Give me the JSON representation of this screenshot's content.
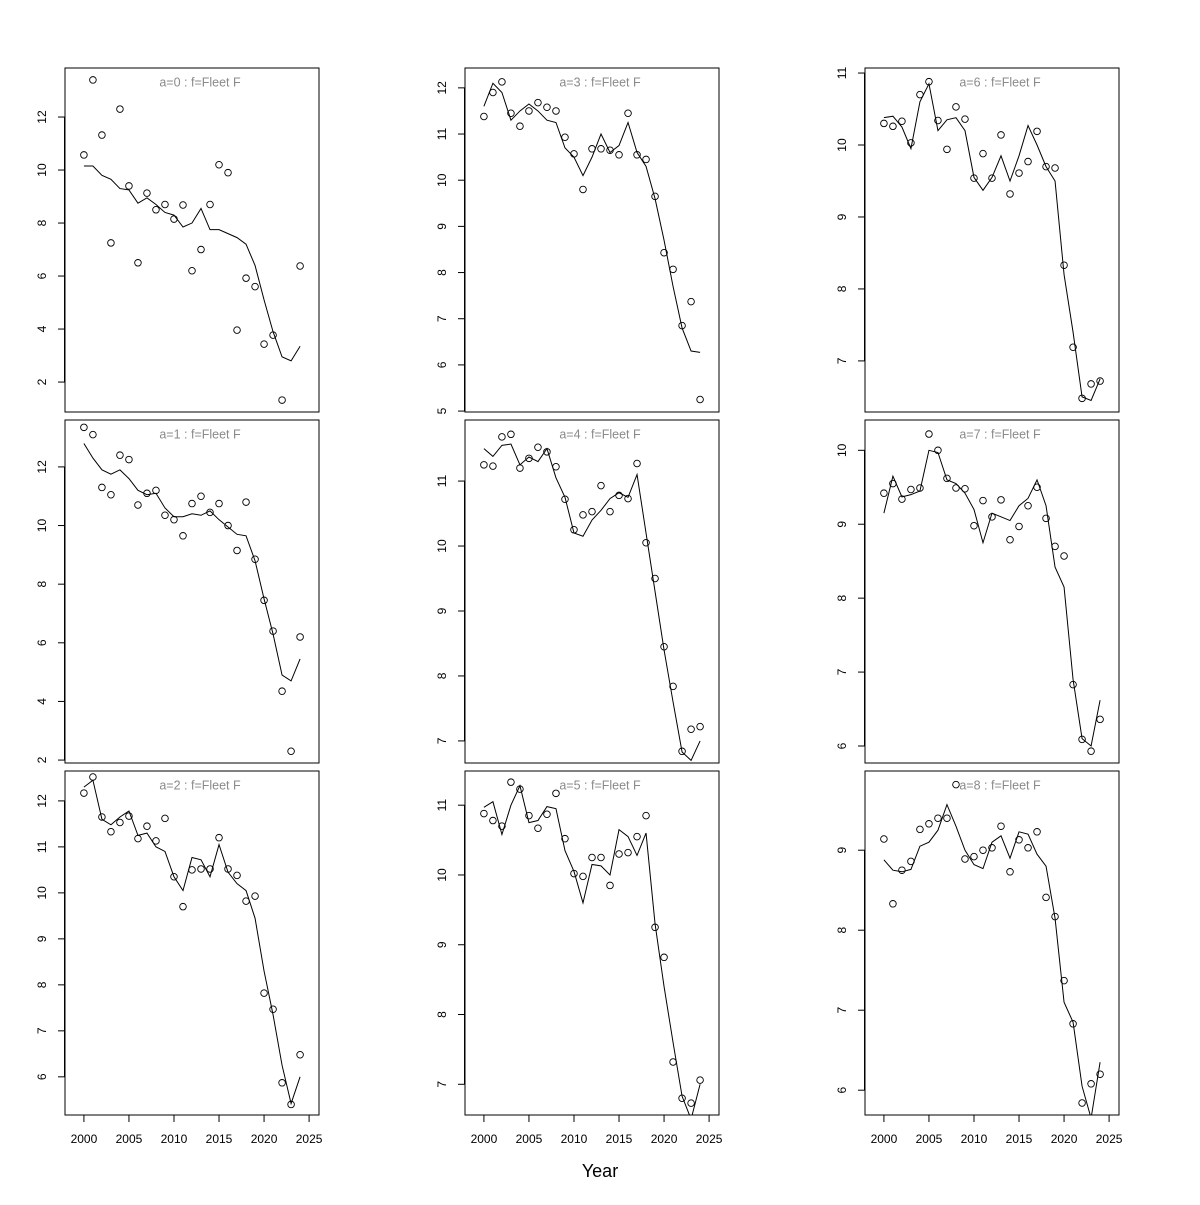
{
  "xlabel": "Year",
  "chart_data": [
    {
      "type": "line",
      "title": "a=0  :  f=Fleet F",
      "x": [
        2000,
        2001,
        2002,
        2003,
        2004,
        2005,
        2006,
        2007,
        2008,
        2009,
        2010,
        2011,
        2012,
        2013,
        2014,
        2015,
        2016,
        2017,
        2018,
        2019,
        2020,
        2021,
        2022,
        2023,
        2024
      ],
      "series": [
        {
          "style": "points",
          "color": "#000000",
          "values": [
            10.57,
            13.4,
            11.32,
            7.25,
            12.3,
            9.4,
            6.5,
            9.13,
            8.5,
            8.7,
            8.15,
            8.68,
            6.2,
            7.0,
            8.7,
            10.2,
            9.9,
            3.96,
            5.92,
            5.6,
            3.43,
            3.77,
            1.32,
            null,
            6.38
          ]
        },
        {
          "style": "line",
          "color": "#000000",
          "values": [
            10.15,
            10.15,
            9.8,
            9.65,
            9.3,
            9.25,
            8.75,
            8.95,
            8.7,
            8.4,
            8.3,
            7.85,
            8.0,
            8.55,
            7.75,
            7.75,
            7.6,
            7.45,
            7.2,
            6.4,
            5.1,
            3.9,
            2.95,
            2.8,
            3.35
          ]
        }
      ],
      "xlim": [
        1997.9,
        2026.1
      ],
      "ylim": [
        0.87,
        13.85
      ],
      "yticks": [
        2,
        4,
        6,
        8,
        10,
        12
      ]
    },
    {
      "type": "line",
      "title": "a=1  :  f=Fleet F",
      "x": [
        2000,
        2001,
        2002,
        2003,
        2004,
        2005,
        2006,
        2007,
        2008,
        2009,
        2010,
        2011,
        2012,
        2013,
        2014,
        2015,
        2016,
        2017,
        2018,
        2019,
        2020,
        2021,
        2022,
        2023,
        2024
      ],
      "series": [
        {
          "style": "points",
          "color": "#000000",
          "values": [
            13.35,
            13.1,
            11.3,
            11.05,
            12.4,
            12.25,
            10.7,
            11.1,
            11.2,
            10.35,
            10.2,
            9.65,
            10.75,
            11.0,
            10.45,
            10.75,
            10.0,
            9.15,
            10.8,
            8.85,
            7.45,
            6.4,
            4.35,
            2.3,
            6.2
          ]
        },
        {
          "style": "line",
          "color": "#000000",
          "values": [
            12.8,
            12.3,
            11.9,
            11.75,
            11.9,
            11.6,
            11.2,
            11.05,
            11.1,
            10.6,
            10.3,
            10.3,
            10.4,
            10.35,
            10.5,
            10.2,
            9.95,
            9.7,
            9.65,
            8.8,
            7.5,
            6.3,
            4.9,
            4.7,
            5.45
          ]
        }
      ],
      "xlim": [
        1997.9,
        2026.1
      ],
      "ylim": [
        1.9,
        13.6
      ],
      "yticks": [
        2,
        4,
        6,
        8,
        10,
        12
      ]
    },
    {
      "type": "line",
      "title": "a=2  :  f=Fleet F",
      "x": [
        2000,
        2001,
        2002,
        2003,
        2004,
        2005,
        2006,
        2007,
        2008,
        2009,
        2010,
        2011,
        2012,
        2013,
        2014,
        2015,
        2016,
        2017,
        2018,
        2019,
        2020,
        2021,
        2022,
        2023,
        2024
      ],
      "series": [
        {
          "style": "points",
          "color": "#000000",
          "values": [
            12.17,
            12.52,
            11.65,
            11.33,
            11.53,
            11.67,
            11.18,
            11.45,
            11.13,
            11.62,
            10.35,
            9.7,
            10.5,
            10.52,
            10.52,
            11.2,
            10.52,
            10.38,
            9.82,
            9.93,
            7.82,
            7.47,
            5.87,
            5.4,
            6.48
          ]
        },
        {
          "style": "line",
          "color": "#000000",
          "values": [
            12.3,
            12.45,
            11.6,
            11.48,
            11.65,
            11.78,
            11.25,
            11.3,
            11.0,
            10.9,
            10.35,
            10.05,
            10.77,
            10.72,
            10.35,
            11.05,
            10.45,
            10.2,
            10.05,
            9.45,
            8.3,
            7.35,
            6.25,
            5.42,
            6.0
          ]
        }
      ],
      "xlim": [
        1997.9,
        2026.1
      ],
      "xticks": [
        2000,
        2005,
        2010,
        2015,
        2020,
        2025
      ],
      "ylim": [
        5.17,
        12.65
      ],
      "yticks": [
        6,
        7,
        8,
        9,
        10,
        11,
        12
      ]
    },
    {
      "type": "line",
      "title": "a=3  :  f=Fleet F",
      "x": [
        2000,
        2001,
        2002,
        2003,
        2004,
        2005,
        2006,
        2007,
        2008,
        2009,
        2010,
        2011,
        2012,
        2013,
        2014,
        2015,
        2016,
        2017,
        2018,
        2019,
        2020,
        2021,
        2022,
        2023,
        2024
      ],
      "series": [
        {
          "style": "points",
          "color": "#000000",
          "values": [
            11.38,
            11.9,
            12.13,
            11.45,
            11.17,
            11.5,
            11.68,
            11.58,
            11.5,
            10.93,
            10.57,
            9.8,
            10.68,
            10.68,
            10.65,
            10.55,
            11.45,
            10.55,
            10.45,
            9.65,
            8.43,
            8.07,
            6.85,
            7.37,
            5.25
          ]
        },
        {
          "style": "line",
          "color": "#000000",
          "values": [
            11.6,
            12.1,
            11.9,
            11.3,
            11.5,
            11.65,
            11.5,
            11.3,
            11.25,
            10.7,
            10.5,
            10.1,
            10.5,
            11.0,
            10.6,
            10.75,
            11.25,
            10.6,
            10.3,
            9.6,
            8.7,
            7.7,
            6.8,
            6.3,
            6.27
          ]
        }
      ],
      "xlim": [
        1997.9,
        2026.1
      ],
      "ylim": [
        4.98,
        12.43
      ],
      "yticks": [
        5,
        6,
        7,
        8,
        9,
        10,
        11,
        12
      ]
    },
    {
      "type": "line",
      "title": "a=4  :  f=Fleet F",
      "x": [
        2000,
        2001,
        2002,
        2003,
        2004,
        2005,
        2006,
        2007,
        2008,
        2009,
        2010,
        2011,
        2012,
        2013,
        2014,
        2015,
        2016,
        2017,
        2018,
        2019,
        2020,
        2021,
        2022,
        2023,
        2024
      ],
      "series": [
        {
          "style": "points",
          "color": "#000000",
          "values": [
            11.25,
            11.23,
            11.68,
            11.72,
            11.2,
            11.35,
            11.52,
            11.45,
            11.22,
            10.72,
            10.25,
            10.48,
            10.53,
            10.93,
            10.53,
            10.78,
            10.73,
            11.27,
            10.05,
            9.5,
            8.45,
            7.84,
            6.84,
            7.18,
            7.22
          ]
        },
        {
          "style": "line",
          "color": "#000000",
          "values": [
            11.5,
            11.38,
            11.55,
            11.57,
            11.25,
            11.37,
            11.3,
            11.5,
            11.05,
            10.75,
            10.2,
            10.15,
            10.4,
            10.55,
            10.73,
            10.82,
            10.75,
            11.1,
            10.2,
            9.3,
            8.4,
            7.6,
            6.83,
            6.7,
            7.0
          ]
        }
      ],
      "xlim": [
        1997.9,
        2026.1
      ],
      "ylim": [
        6.66,
        11.94
      ],
      "yticks": [
        7,
        8,
        9,
        10,
        11
      ]
    },
    {
      "type": "line",
      "title": "a=5  :  f=Fleet F",
      "x": [
        2000,
        2001,
        2002,
        2003,
        2004,
        2005,
        2006,
        2007,
        2008,
        2009,
        2010,
        2011,
        2012,
        2013,
        2014,
        2015,
        2016,
        2017,
        2018,
        2019,
        2020,
        2021,
        2022,
        2023,
        2024
      ],
      "series": [
        {
          "style": "points",
          "color": "#000000",
          "values": [
            10.88,
            10.78,
            10.7,
            11.33,
            11.23,
            10.85,
            10.67,
            10.87,
            11.17,
            10.52,
            10.02,
            9.98,
            10.25,
            10.25,
            9.85,
            10.3,
            10.32,
            10.55,
            10.85,
            9.25,
            8.82,
            7.32,
            6.8,
            6.73,
            7.06
          ]
        },
        {
          "style": "line",
          "color": "#000000",
          "values": [
            10.97,
            11.05,
            10.58,
            11.0,
            11.28,
            10.75,
            10.78,
            10.98,
            10.95,
            10.35,
            10.05,
            9.6,
            10.15,
            10.13,
            10.0,
            10.65,
            10.55,
            10.28,
            10.6,
            9.3,
            8.4,
            7.6,
            6.83,
            6.5,
            7.0
          ]
        }
      ],
      "xlim": [
        1997.9,
        2026.1
      ],
      "xticks": [
        2000,
        2005,
        2010,
        2015,
        2020,
        2025
      ],
      "ylim": [
        6.56,
        11.49
      ],
      "yticks": [
        7,
        8,
        9,
        10,
        11
      ]
    },
    {
      "type": "line",
      "title": "a=6  :  f=Fleet F",
      "x": [
        2000,
        2001,
        2002,
        2003,
        2004,
        2005,
        2006,
        2007,
        2008,
        2009,
        2010,
        2011,
        2012,
        2013,
        2014,
        2015,
        2016,
        2017,
        2018,
        2019,
        2020,
        2021,
        2022,
        2023,
        2024
      ],
      "series": [
        {
          "style": "points",
          "color": "#000000",
          "values": [
            10.3,
            10.26,
            10.33,
            10.03,
            10.7,
            10.88,
            10.34,
            9.94,
            10.53,
            10.36,
            9.54,
            9.88,
            9.54,
            10.14,
            9.32,
            9.61,
            9.77,
            10.19,
            9.7,
            9.68,
            8.33,
            7.19,
            6.48,
            6.68,
            6.72
          ]
        },
        {
          "style": "line",
          "color": "#000000",
          "values": [
            10.38,
            10.4,
            10.25,
            9.95,
            10.6,
            10.85,
            10.2,
            10.35,
            10.38,
            10.2,
            9.55,
            9.37,
            9.55,
            9.85,
            9.5,
            9.85,
            10.27,
            10.0,
            9.7,
            9.5,
            8.2,
            7.4,
            6.5,
            6.45,
            6.75
          ]
        }
      ],
      "xlim": [
        1997.9,
        2026.1
      ],
      "ylim": [
        6.29,
        11.07
      ],
      "yticks": [
        7,
        8,
        9,
        10,
        11
      ]
    },
    {
      "type": "line",
      "title": "a=7  :  f=Fleet F",
      "x": [
        2000,
        2001,
        2002,
        2003,
        2004,
        2005,
        2006,
        2007,
        2008,
        2009,
        2010,
        2011,
        2012,
        2013,
        2014,
        2015,
        2016,
        2017,
        2018,
        2019,
        2020,
        2021,
        2022,
        2023,
        2024
      ],
      "series": [
        {
          "style": "points",
          "color": "#000000",
          "values": [
            9.42,
            9.55,
            9.34,
            9.47,
            9.49,
            10.22,
            10.0,
            9.62,
            9.49,
            9.48,
            8.98,
            9.32,
            9.1,
            9.33,
            8.79,
            8.97,
            9.25,
            9.5,
            9.08,
            8.7,
            8.57,
            6.83,
            6.09,
            5.93,
            6.36
          ]
        },
        {
          "style": "line",
          "color": "#000000",
          "values": [
            9.15,
            9.65,
            9.37,
            9.4,
            9.45,
            10.0,
            9.97,
            9.6,
            9.55,
            9.42,
            9.2,
            8.75,
            9.15,
            9.1,
            9.05,
            9.25,
            9.35,
            9.6,
            9.25,
            8.42,
            8.15,
            6.9,
            6.1,
            6.0,
            6.62
          ]
        }
      ],
      "xlim": [
        1997.9,
        2026.1
      ],
      "ylim": [
        5.77,
        10.41
      ],
      "yticks": [
        6,
        7,
        8,
        9,
        10
      ]
    },
    {
      "type": "line",
      "title": "a=8  :  f=Fleet F",
      "x": [
        2000,
        2001,
        2002,
        2003,
        2004,
        2005,
        2006,
        2007,
        2008,
        2009,
        2010,
        2011,
        2012,
        2013,
        2014,
        2015,
        2016,
        2017,
        2018,
        2019,
        2020,
        2021,
        2022,
        2023,
        2024
      ],
      "series": [
        {
          "style": "points",
          "color": "#000000",
          "values": [
            9.14,
            8.33,
            8.75,
            8.86,
            9.26,
            9.33,
            9.4,
            9.4,
            9.82,
            8.89,
            8.92,
            9.0,
            9.03,
            9.3,
            8.73,
            9.13,
            9.03,
            9.23,
            8.41,
            8.17,
            7.37,
            6.83,
            5.84,
            6.08,
            6.2
          ]
        },
        {
          "style": "line",
          "color": "#000000",
          "values": [
            8.88,
            8.75,
            8.73,
            8.76,
            9.05,
            9.1,
            9.25,
            9.57,
            9.3,
            9.0,
            8.82,
            8.77,
            9.1,
            9.18,
            8.9,
            9.23,
            9.2,
            8.95,
            8.8,
            8.15,
            7.1,
            6.85,
            6.05,
            5.65,
            6.35
          ]
        }
      ],
      "xlim": [
        1997.9,
        2026.1
      ],
      "xticks": [
        2000,
        2005,
        2010,
        2015,
        2020,
        2025
      ],
      "ylim": [
        5.69,
        9.99
      ],
      "yticks": [
        6,
        7,
        8,
        9
      ]
    }
  ]
}
